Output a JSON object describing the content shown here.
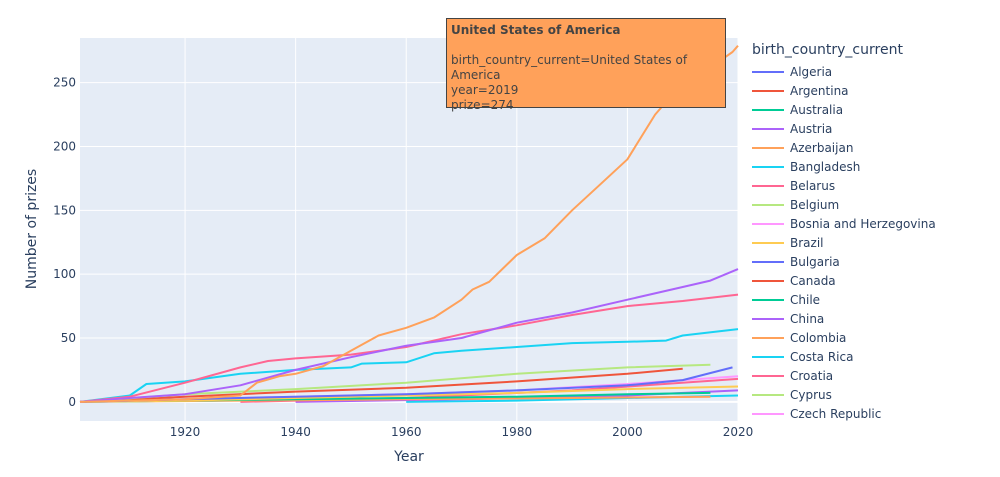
{
  "chart_data": {
    "type": "line",
    "xlabel": "Year",
    "ylabel": "Number of prizes",
    "xlim": [
      1901,
      2020
    ],
    "ylim": [
      -15,
      285
    ],
    "x_ticks": [
      1920,
      1940,
      1960,
      1980,
      2000,
      2020
    ],
    "y_ticks": [
      0,
      50,
      100,
      150,
      200,
      250
    ],
    "grid": true,
    "legend_placement": "right",
    "legend_title": "birth_country_current",
    "legend": [
      {
        "name": "Algeria",
        "color": "#636efa"
      },
      {
        "name": "Argentina",
        "color": "#EF553B"
      },
      {
        "name": "Australia",
        "color": "#00cc96"
      },
      {
        "name": "Austria",
        "color": "#ab63fa"
      },
      {
        "name": "Azerbaijan",
        "color": "#FFA15A"
      },
      {
        "name": "Bangladesh",
        "color": "#19d3f3"
      },
      {
        "name": "Belarus",
        "color": "#FF6692"
      },
      {
        "name": "Belgium",
        "color": "#B6E880"
      },
      {
        "name": "Bosnia and Herzegovina",
        "color": "#FF97FF"
      },
      {
        "name": "Brazil",
        "color": "#FECB52"
      },
      {
        "name": "Bulgaria",
        "color": "#636efa"
      },
      {
        "name": "Canada",
        "color": "#EF553B"
      },
      {
        "name": "Chile",
        "color": "#00cc96"
      },
      {
        "name": "China",
        "color": "#ab63fa"
      },
      {
        "name": "Colombia",
        "color": "#FFA15A"
      },
      {
        "name": "Costa Rica",
        "color": "#19d3f3"
      },
      {
        "name": "Croatia",
        "color": "#FF6692"
      },
      {
        "name": "Cyprus",
        "color": "#B6E880"
      },
      {
        "name": "Czech Republic",
        "color": "#FF97FF"
      }
    ],
    "series": [
      {
        "name": "United States of America",
        "color": "#FFA15A",
        "x": [
          1901,
          1910,
          1920,
          1930,
          1933,
          1937,
          1940,
          1945,
          1950,
          1955,
          1960,
          1965,
          1970,
          1972,
          1975,
          1980,
          1985,
          1990,
          1995,
          2000,
          2005,
          2010,
          2015,
          2019,
          2020
        ],
        "y": [
          0,
          1,
          2,
          5,
          15,
          20,
          22,
          28,
          40,
          52,
          58,
          66,
          80,
          88,
          94,
          115,
          128,
          150,
          170,
          190,
          225,
          250,
          262,
          274,
          279
        ]
      },
      {
        "color": "#ab63fa",
        "x": [
          1901,
          1910,
          1920,
          1930,
          1940,
          1950,
          1960,
          1970,
          1980,
          1990,
          2000,
          2010,
          2015,
          2020
        ],
        "y": [
          0,
          3,
          6,
          13,
          25,
          35,
          44,
          50,
          62,
          70,
          80,
          90,
          95,
          104
        ]
      },
      {
        "color": "#FF6692",
        "x": [
          1901,
          1910,
          1920,
          1930,
          1935,
          1940,
          1950,
          1960,
          1970,
          1980,
          1990,
          2000,
          2010,
          2020
        ],
        "y": [
          0,
          4,
          15,
          27,
          32,
          34,
          37,
          43,
          53,
          60,
          68,
          75,
          79,
          84
        ]
      },
      {
        "color": "#19d3f3",
        "x": [
          1901,
          1910,
          1913,
          1920,
          1930,
          1940,
          1950,
          1952,
          1960,
          1965,
          1970,
          1980,
          1990,
          2000,
          2007,
          2010,
          2020
        ],
        "y": [
          0,
          5,
          14,
          16,
          22,
          25,
          27,
          30,
          31,
          38,
          40,
          43,
          46,
          47,
          48,
          52,
          57
        ]
      },
      {
        "color": "#B6E880",
        "x": [
          1901,
          1920,
          1940,
          1960,
          1980,
          2000,
          2015
        ],
        "y": [
          0,
          6,
          10,
          15,
          22,
          27,
          29
        ]
      },
      {
        "color": "#EF553B",
        "x": [
          1901,
          1920,
          1940,
          1960,
          1980,
          2000,
          2010
        ],
        "y": [
          0,
          4,
          8,
          11,
          16,
          22,
          26
        ]
      },
      {
        "color": "#636efa",
        "x": [
          1901,
          1920,
          1940,
          1960,
          1980,
          2000,
          2010,
          2019
        ],
        "y": [
          0,
          2,
          4,
          6,
          9,
          13,
          17,
          27
        ]
      },
      {
        "color": "#FECB52",
        "x": [
          1901,
          1920,
          1940,
          1960,
          1980,
          2000,
          2020
        ],
        "y": [
          0,
          1,
          3,
          5,
          7,
          10,
          12
        ]
      },
      {
        "color": "#FF97FF",
        "x": [
          1901,
          1920,
          1940,
          1960,
          1980,
          2000,
          2020
        ],
        "y": [
          0,
          2,
          4,
          6,
          9,
          14,
          20
        ]
      },
      {
        "color": "#00cc96",
        "x": [
          1901,
          1920,
          1940,
          1960,
          1980,
          2000,
          2015
        ],
        "y": [
          0,
          1,
          2,
          3,
          4,
          6,
          7
        ]
      },
      {
        "color": "#FFA15A",
        "x": [
          1901,
          1930,
          1960,
          1990,
          2015
        ],
        "y": [
          0,
          1,
          2,
          3,
          4
        ]
      },
      {
        "color": "#FF6692",
        "x": [
          1930,
          1960,
          1990,
          2020
        ],
        "y": [
          0,
          3,
          9,
          18
        ]
      },
      {
        "color": "#ab63fa",
        "x": [
          1940,
          1970,
          2000,
          2020
        ],
        "y": [
          0,
          2,
          5,
          9
        ]
      },
      {
        "color": "#19d3f3",
        "x": [
          1960,
          1980,
          2000,
          2020
        ],
        "y": [
          0,
          1,
          3,
          5
        ]
      }
    ]
  },
  "tooltip": {
    "title": "United States of America",
    "line1": "birth_country_current=United States of America",
    "line2": "year=2019",
    "line3": "prize=274",
    "color": "#FFA15A"
  }
}
